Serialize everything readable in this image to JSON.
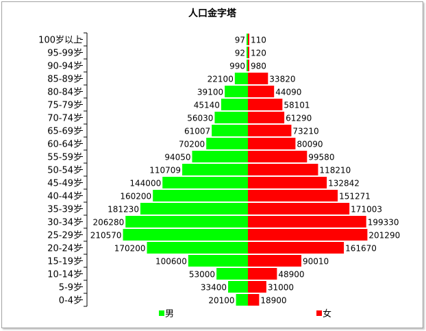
{
  "chart_data": {
    "type": "bar",
    "orientation": "horizontal-pyramid",
    "title": "人口金字塔",
    "categories": [
      "100岁以上",
      "95-99岁",
      "90-94岁",
      "85-89岁",
      "80-84岁",
      "75-79岁",
      "70-74岁",
      "65-69岁",
      "60-64岁",
      "55-59岁",
      "50-54岁",
      "45-49岁",
      "40-44岁",
      "35-39岁",
      "30-34岁",
      "25-29岁",
      "20-24岁",
      "15-19岁",
      "10-14岁",
      "5-9岁",
      "0-4岁"
    ],
    "series": [
      {
        "name": "男",
        "color": "#00ff00",
        "side": "left",
        "values": [
          97,
          92,
          990,
          22100,
          39100,
          45140,
          56030,
          61007,
          70200,
          94050,
          110709,
          144000,
          160200,
          181230,
          206280,
          210570,
          170200,
          100600,
          53000,
          33400,
          20100
        ]
      },
      {
        "name": "女",
        "color": "#ff0000",
        "side": "right",
        "values": [
          110,
          120,
          980,
          33820,
          44090,
          58101,
          61290,
          73210,
          80090,
          99580,
          118210,
          132842,
          151271,
          171003,
          199330,
          201290,
          161670,
          90010,
          48900,
          31000,
          18900
        ]
      }
    ],
    "xlim": [
      -220000,
      220000
    ],
    "grid": false,
    "legend": "bottom"
  }
}
